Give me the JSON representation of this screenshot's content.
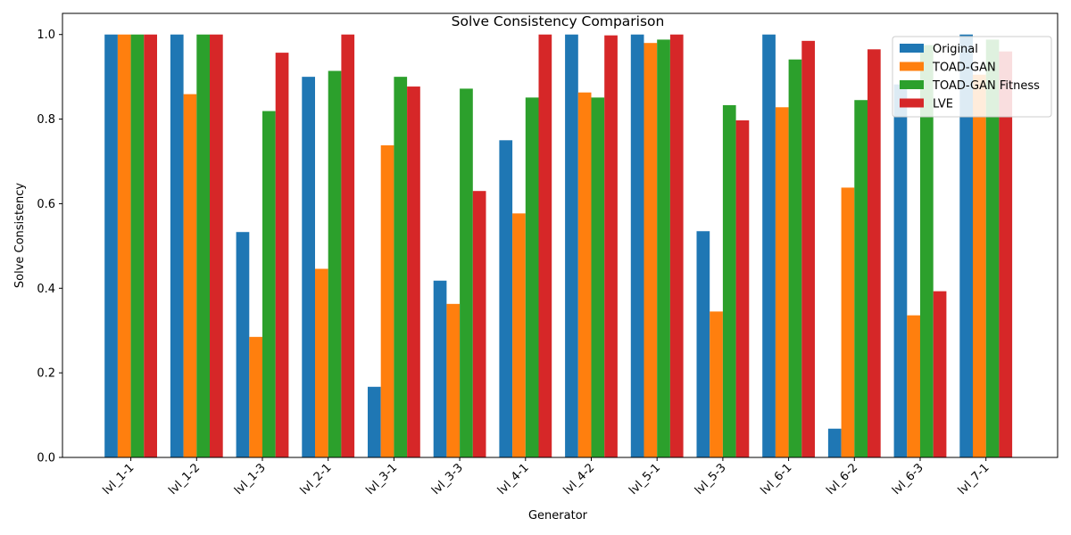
{
  "chart_data": {
    "type": "bar",
    "title": "Solve Consistency Comparison",
    "xlabel": "Generator",
    "ylabel": "Solve Consistency",
    "ylim": [
      0,
      1.05
    ],
    "yticks": [
      "0.0",
      "0.2",
      "0.4",
      "0.6",
      "0.8",
      "1.0"
    ],
    "grid": false,
    "legend_position": "top-right",
    "categories": [
      "lvl_1-1",
      "lvl_1-2",
      "lvl_1-3",
      "lvl_2-1",
      "lvl_3-1",
      "lvl_3-3",
      "lvl_4-1",
      "lvl_4-2",
      "lvl_5-1",
      "lvl_5-3",
      "lvl_6-1",
      "lvl_6-2",
      "lvl_6-3",
      "lvl_7-1"
    ],
    "series": [
      {
        "name": "Original",
        "color": "#1f77b4",
        "values": [
          1.0,
          1.0,
          0.533,
          0.9,
          0.167,
          0.418,
          0.75,
          1.0,
          1.0,
          0.535,
          1.0,
          0.068,
          0.882,
          1.0
        ]
      },
      {
        "name": "TOAD-GAN",
        "color": "#ff7f0e",
        "values": [
          1.0,
          0.859,
          0.285,
          0.446,
          0.738,
          0.363,
          0.577,
          0.863,
          0.98,
          0.345,
          0.828,
          0.638,
          0.336,
          0.905
        ]
      },
      {
        "name": "TOAD-GAN Fitness",
        "color": "#2ca02c",
        "values": [
          1.0,
          1.0,
          0.819,
          0.914,
          0.9,
          0.872,
          0.851,
          0.851,
          0.988,
          0.833,
          0.941,
          0.845,
          0.975,
          0.988
        ]
      },
      {
        "name": "LVE",
        "color": "#d62728",
        "values": [
          1.0,
          1.0,
          0.957,
          1.0,
          0.877,
          0.63,
          1.0,
          0.998,
          1.0,
          0.797,
          0.985,
          0.965,
          0.393,
          0.96
        ]
      }
    ]
  }
}
